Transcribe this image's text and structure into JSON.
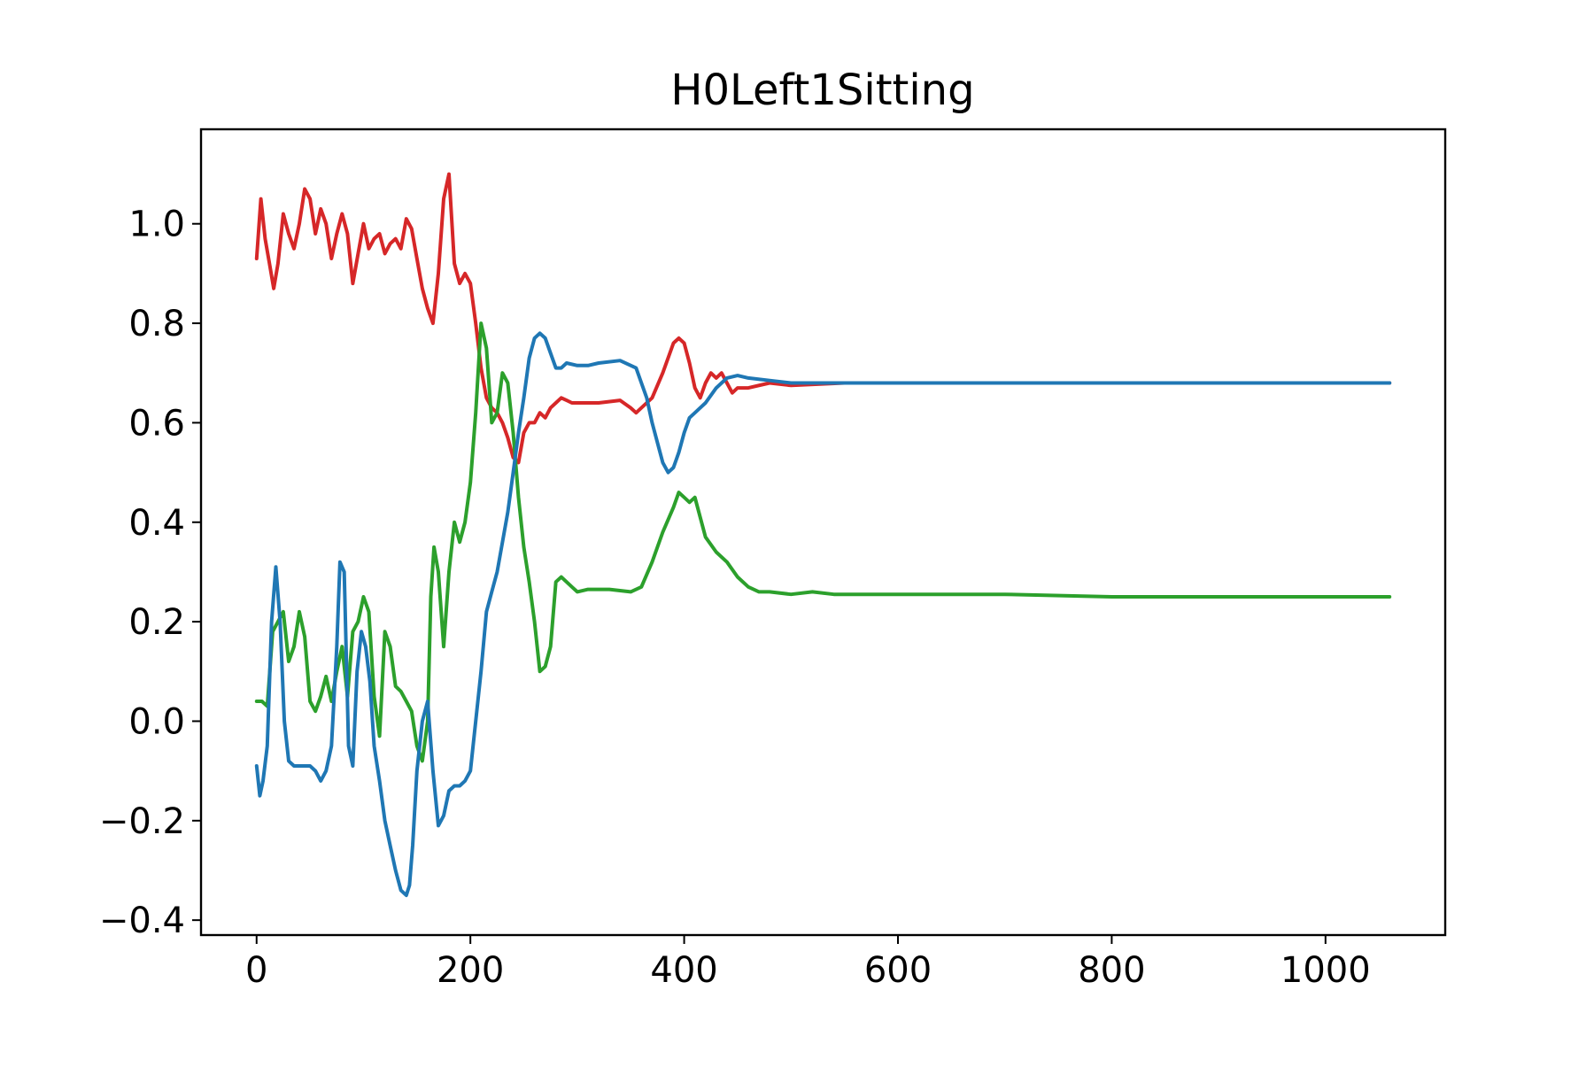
{
  "chart_data": {
    "type": "line",
    "title": "H0Left1Sitting",
    "xlabel": "",
    "ylabel": "",
    "xlim": [
      -52,
      1112
    ],
    "ylim": [
      -0.43,
      1.19
    ],
    "xticks": [
      0,
      200,
      400,
      600,
      800,
      1000
    ],
    "xtick_labels": [
      "0",
      "200",
      "400",
      "600",
      "800",
      "1000"
    ],
    "yticks": [
      -0.4,
      -0.2,
      0.0,
      0.2,
      0.4,
      0.6,
      0.8,
      1.0
    ],
    "ytick_labels": [
      "−0.4",
      "−0.2",
      "0.0",
      "0.2",
      "0.4",
      "0.6",
      "0.8",
      "1.0"
    ],
    "grid": false,
    "legend": "none",
    "series": [
      {
        "color": "#d62728",
        "x": [
          0,
          4,
          8,
          12,
          16,
          20,
          25,
          30,
          35,
          40,
          45,
          50,
          55,
          60,
          65,
          70,
          75,
          80,
          85,
          90,
          95,
          100,
          105,
          110,
          115,
          120,
          125,
          130,
          135,
          140,
          145,
          150,
          155,
          160,
          165,
          170,
          175,
          180,
          185,
          190,
          195,
          200,
          205,
          210,
          215,
          220,
          225,
          230,
          235,
          240,
          245,
          250,
          255,
          260,
          265,
          270,
          275,
          280,
          285,
          290,
          295,
          300,
          320,
          340,
          350,
          355,
          360,
          370,
          380,
          390,
          395,
          400,
          405,
          410,
          415,
          420,
          425,
          430,
          435,
          440,
          445,
          450,
          460,
          480,
          500,
          550,
          600,
          700,
          800,
          900,
          1000,
          1060
        ],
        "y": [
          0.93,
          1.05,
          0.97,
          0.92,
          0.87,
          0.92,
          1.02,
          0.98,
          0.95,
          1.0,
          1.07,
          1.05,
          0.98,
          1.03,
          1.0,
          0.93,
          0.98,
          1.02,
          0.98,
          0.88,
          0.94,
          1.0,
          0.95,
          0.97,
          0.98,
          0.94,
          0.96,
          0.97,
          0.95,
          1.01,
          0.99,
          0.93,
          0.87,
          0.83,
          0.8,
          0.9,
          1.05,
          1.1,
          0.92,
          0.88,
          0.9,
          0.88,
          0.8,
          0.71,
          0.65,
          0.63,
          0.62,
          0.6,
          0.57,
          0.53,
          0.52,
          0.58,
          0.6,
          0.6,
          0.62,
          0.61,
          0.63,
          0.64,
          0.65,
          0.645,
          0.64,
          0.64,
          0.64,
          0.645,
          0.63,
          0.62,
          0.63,
          0.65,
          0.7,
          0.76,
          0.77,
          0.76,
          0.72,
          0.67,
          0.65,
          0.68,
          0.7,
          0.69,
          0.7,
          0.68,
          0.66,
          0.67,
          0.67,
          0.68,
          0.675,
          0.68,
          0.68,
          0.68,
          0.68,
          0.68,
          0.68,
          0.68
        ]
      },
      {
        "color": "#2ca02c",
        "x": [
          0,
          5,
          10,
          15,
          20,
          25,
          30,
          35,
          40,
          45,
          50,
          55,
          60,
          65,
          70,
          75,
          80,
          85,
          90,
          95,
          100,
          105,
          110,
          115,
          120,
          125,
          130,
          135,
          140,
          145,
          150,
          155,
          160,
          163,
          166,
          170,
          175,
          180,
          185,
          190,
          195,
          200,
          205,
          210,
          215,
          220,
          225,
          230,
          235,
          240,
          245,
          250,
          255,
          260,
          265,
          270,
          275,
          280,
          285,
          290,
          295,
          300,
          310,
          330,
          350,
          360,
          370,
          380,
          390,
          395,
          400,
          405,
          410,
          420,
          430,
          440,
          450,
          460,
          470,
          480,
          500,
          520,
          540,
          600,
          700,
          800,
          900,
          1000,
          1060
        ],
        "y": [
          0.04,
          0.04,
          0.03,
          0.18,
          0.2,
          0.22,
          0.12,
          0.15,
          0.22,
          0.17,
          0.04,
          0.02,
          0.05,
          0.09,
          0.04,
          0.1,
          0.15,
          0.05,
          0.18,
          0.2,
          0.25,
          0.22,
          0.05,
          -0.03,
          0.18,
          0.15,
          0.07,
          0.06,
          0.04,
          0.02,
          -0.05,
          -0.08,
          0.0,
          0.25,
          0.35,
          0.3,
          0.15,
          0.3,
          0.4,
          0.36,
          0.4,
          0.48,
          0.62,
          0.8,
          0.75,
          0.6,
          0.62,
          0.7,
          0.68,
          0.58,
          0.45,
          0.35,
          0.28,
          0.2,
          0.1,
          0.11,
          0.15,
          0.28,
          0.29,
          0.28,
          0.27,
          0.26,
          0.265,
          0.265,
          0.26,
          0.27,
          0.32,
          0.38,
          0.43,
          0.46,
          0.45,
          0.44,
          0.45,
          0.37,
          0.34,
          0.32,
          0.29,
          0.27,
          0.26,
          0.26,
          0.255,
          0.26,
          0.255,
          0.255,
          0.255,
          0.25,
          0.25,
          0.25,
          0.25
        ]
      },
      {
        "color": "#1f77b4",
        "x": [
          0,
          3,
          6,
          10,
          14,
          18,
          22,
          26,
          30,
          35,
          40,
          45,
          50,
          55,
          60,
          65,
          70,
          75,
          78,
          82,
          86,
          90,
          94,
          98,
          102,
          106,
          110,
          115,
          120,
          125,
          130,
          135,
          140,
          143,
          146,
          150,
          155,
          160,
          165,
          170,
          175,
          180,
          185,
          190,
          195,
          200,
          205,
          210,
          215,
          220,
          225,
          230,
          235,
          240,
          245,
          250,
          255,
          260,
          265,
          270,
          275,
          280,
          285,
          290,
          300,
          310,
          320,
          340,
          355,
          360,
          365,
          370,
          375,
          380,
          385,
          390,
          395,
          400,
          405,
          410,
          415,
          420,
          430,
          440,
          450,
          460,
          480,
          500,
          550,
          600,
          700,
          800,
          900,
          1000,
          1060
        ],
        "y": [
          -0.09,
          -0.15,
          -0.12,
          -0.05,
          0.2,
          0.31,
          0.2,
          0.0,
          -0.08,
          -0.09,
          -0.09,
          -0.09,
          -0.09,
          -0.1,
          -0.12,
          -0.1,
          -0.05,
          0.15,
          0.32,
          0.3,
          -0.05,
          -0.09,
          0.1,
          0.18,
          0.15,
          0.08,
          -0.05,
          -0.12,
          -0.2,
          -0.25,
          -0.3,
          -0.34,
          -0.35,
          -0.33,
          -0.25,
          -0.1,
          0.0,
          0.04,
          -0.1,
          -0.21,
          -0.19,
          -0.14,
          -0.13,
          -0.13,
          -0.12,
          -0.1,
          0.0,
          0.1,
          0.22,
          0.26,
          0.3,
          0.36,
          0.42,
          0.5,
          0.58,
          0.65,
          0.73,
          0.77,
          0.78,
          0.77,
          0.74,
          0.71,
          0.71,
          0.72,
          0.715,
          0.715,
          0.72,
          0.725,
          0.71,
          0.68,
          0.65,
          0.6,
          0.56,
          0.52,
          0.5,
          0.51,
          0.54,
          0.58,
          0.61,
          0.62,
          0.63,
          0.64,
          0.67,
          0.69,
          0.695,
          0.69,
          0.685,
          0.68,
          0.68,
          0.68,
          0.68,
          0.68,
          0.68,
          0.68,
          0.68
        ]
      }
    ]
  }
}
